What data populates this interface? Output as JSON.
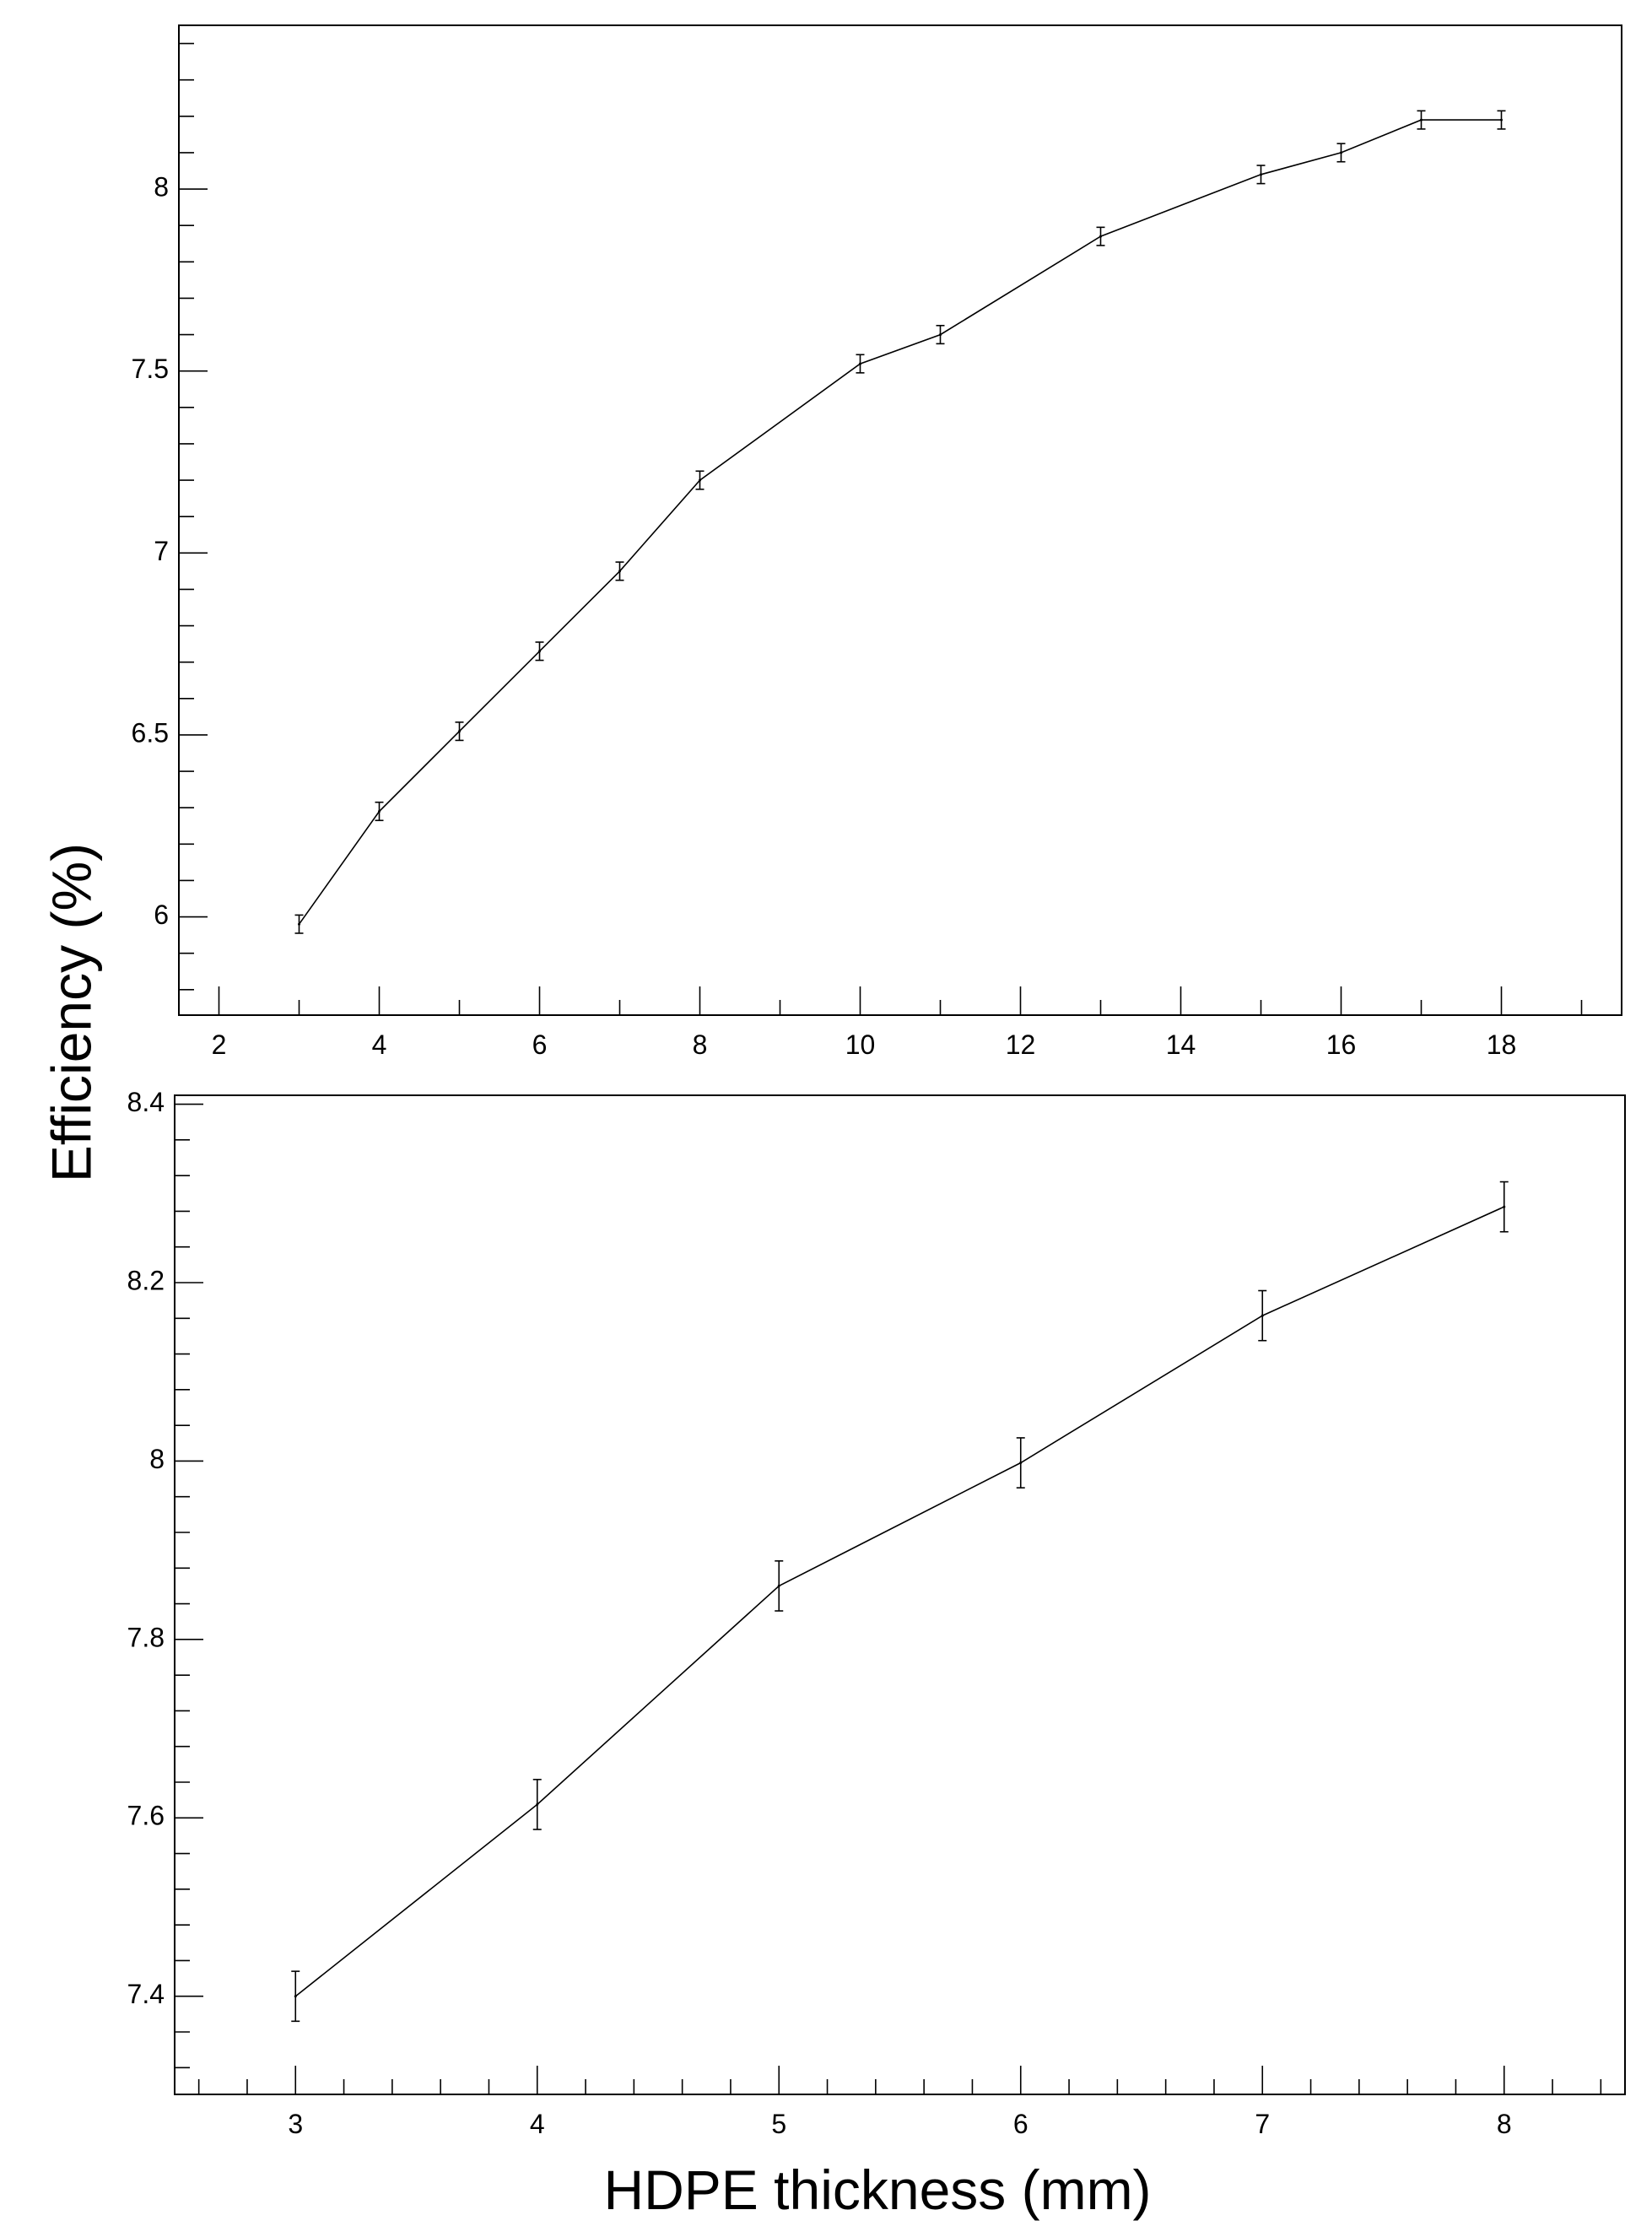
{
  "chart_data": [
    {
      "type": "line",
      "panel": "top",
      "error_bars": true,
      "grid": false,
      "xlim": [
        1.5,
        19.5
      ],
      "ylim": [
        5.73,
        8.45
      ],
      "xticks": [
        2,
        4,
        6,
        8,
        10,
        12,
        14,
        16,
        18
      ],
      "xtick_labels": [
        "2",
        "4",
        "6",
        "8",
        "10",
        "12",
        "14",
        "16",
        "18"
      ],
      "yticks": [
        6,
        6.5,
        7,
        7.5,
        8
      ],
      "ytick_labels": [
        "6",
        "6.5",
        "7",
        "7.5",
        "8"
      ],
      "series": [
        {
          "x": [
            3,
            4,
            5,
            6,
            7,
            8,
            10,
            11,
            13,
            15,
            16,
            17,
            18
          ],
          "y": [
            5.98,
            6.29,
            6.51,
            6.73,
            6.95,
            7.2,
            7.52,
            7.6,
            7.87,
            8.04,
            8.1,
            8.19,
            8.19
          ],
          "err": [
            0.025,
            0.025,
            0.025,
            0.025,
            0.025,
            0.025,
            0.025,
            0.025,
            0.025,
            0.025,
            0.025,
            0.025,
            0.025
          ]
        }
      ]
    },
    {
      "type": "line",
      "panel": "bottom",
      "error_bars": true,
      "grid": false,
      "xlim": [
        2.5,
        8.5
      ],
      "ylim": [
        7.29,
        8.41
      ],
      "xticks": [
        3,
        4,
        5,
        6,
        7,
        8
      ],
      "xtick_labels": [
        "3",
        "4",
        "5",
        "6",
        "7",
        "8"
      ],
      "yticks": [
        7.4,
        7.6,
        7.8,
        8,
        8.2,
        8.4
      ],
      "ytick_labels": [
        "7.4",
        "7.6",
        "7.8",
        "8",
        "8.2",
        "8.4"
      ],
      "series": [
        {
          "x": [
            3,
            4,
            5,
            6,
            7,
            8
          ],
          "y": [
            7.4,
            7.615,
            7.86,
            7.998,
            8.163,
            8.285
          ],
          "err": [
            0.028,
            0.028,
            0.028,
            0.028,
            0.028,
            0.028
          ]
        }
      ]
    }
  ],
  "labels": {
    "ylabel": "Efficiency (%)",
    "xlabel": "HDPE thickness (mm)"
  }
}
